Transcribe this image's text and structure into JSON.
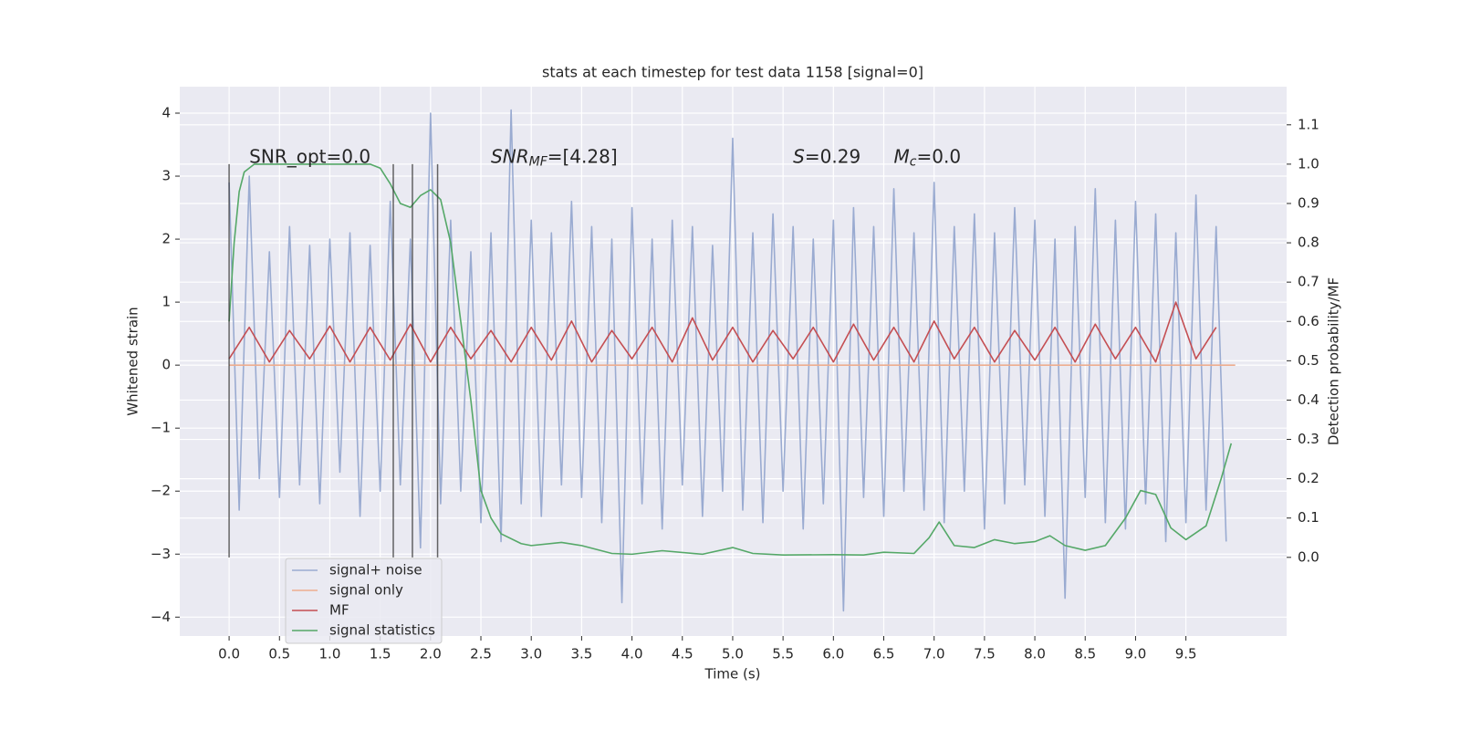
{
  "chart_data": {
    "type": "line",
    "title": "stats at each timestep for test data 1158 [signal=0]",
    "xlabel": "Time (s)",
    "ylabel": "Whitened strain",
    "y2label": "Detection probability/MF",
    "xlim": [
      -0.49,
      10.5
    ],
    "ylim": [
      -4.3,
      4.42
    ],
    "y2lim": [
      -0.2,
      1.197
    ],
    "xticks": [
      {
        "value": 0,
        "label": "0.0"
      },
      0.5,
      {
        "value": 1,
        "label": "1.0"
      },
      1.5,
      {
        "value": 2,
        "label": "2.0"
      },
      2.5,
      {
        "value": 3,
        "label": "3.0"
      },
      3.5,
      {
        "value": 4,
        "label": "4.0"
      },
      4.5,
      {
        "value": 5,
        "label": "5.0"
      },
      5.5,
      {
        "value": 6,
        "label": "6.0"
      },
      6.5,
      {
        "value": 7,
        "label": "7.0"
      },
      7.5,
      {
        "value": 8,
        "label": "8.0"
      },
      8.5,
      {
        "value": 9,
        "label": "9.0"
      },
      9.5
    ],
    "yticks": [
      {
        "value": -4,
        "label": "−4"
      },
      {
        "value": -3,
        "label": "−3"
      },
      {
        "value": -2,
        "label": "−2"
      },
      {
        "value": -1,
        "label": "−1"
      },
      0,
      1,
      2,
      3,
      4
    ],
    "y2ticks": [
      {
        "value": 0,
        "label": "0.0"
      },
      0.1,
      0.2,
      0.3,
      0.4,
      0.5,
      0.6,
      0.7,
      0.8,
      0.9,
      {
        "value": 1,
        "label": "1.0"
      },
      1.1
    ],
    "grid": true,
    "legend": "lower left",
    "series": [
      {
        "name": "signal+ noise",
        "color": "#9aabd1",
        "x": [
          0,
          0.1,
          0.2,
          0.3,
          0.4,
          0.5,
          0.6,
          0.7,
          0.8,
          0.9,
          1,
          1.1,
          1.2,
          1.3,
          1.4,
          1.5,
          1.6,
          1.7,
          1.8,
          1.9,
          2,
          2.1,
          2.2,
          2.3,
          2.4,
          2.5,
          2.6,
          2.7,
          2.8,
          2.9,
          3,
          3.1,
          3.2,
          3.3,
          3.4,
          3.5,
          3.6,
          3.7,
          3.8,
          3.9,
          4,
          4.1,
          4.2,
          4.3,
          4.4,
          4.5,
          4.6,
          4.7,
          4.8,
          4.9,
          5,
          5.1,
          5.2,
          5.3,
          5.4,
          5.5,
          5.6,
          5.7,
          5.8,
          5.9,
          6,
          6.1,
          6.2,
          6.3,
          6.4,
          6.5,
          6.6,
          6.7,
          6.8,
          6.9,
          7,
          7.1,
          7.2,
          7.3,
          7.4,
          7.5,
          7.6,
          7.7,
          7.8,
          7.9,
          8,
          8.1,
          8.2,
          8.3,
          8.4,
          8.5,
          8.6,
          8.7,
          8.8,
          8.9,
          9,
          9.1,
          9.2,
          9.3,
          9.4,
          9.5,
          9.6,
          9.7,
          9.8,
          9.9
        ],
        "values": [
          2.9,
          -2.3,
          3.0,
          -1.8,
          1.8,
          -2.1,
          2.2,
          -1.9,
          1.9,
          -2.2,
          2.0,
          -1.7,
          2.1,
          -2.4,
          1.9,
          -2.0,
          2.6,
          -1.9,
          2.0,
          -2.9,
          4.0,
          -2.2,
          2.3,
          -2.0,
          1.8,
          -2.5,
          2.1,
          -2.8,
          4.05,
          -2.2,
          2.3,
          -2.4,
          2.1,
          -1.9,
          2.6,
          -2.1,
          2.2,
          -2.5,
          2.0,
          -3.77,
          2.5,
          -2.2,
          2.0,
          -2.6,
          2.3,
          -1.9,
          2.2,
          -2.4,
          1.9,
          -2.0,
          3.6,
          -2.3,
          2.1,
          -2.5,
          2.4,
          -2.0,
          2.2,
          -2.6,
          2.0,
          -2.2,
          2.3,
          -3.9,
          2.5,
          -2.1,
          2.2,
          -2.4,
          2.8,
          -2.0,
          2.1,
          -2.3,
          2.9,
          -2.5,
          2.2,
          -2.0,
          2.4,
          -2.6,
          2.1,
          -2.2,
          2.5,
          -1.9,
          2.3,
          -2.4,
          2.0,
          -3.7,
          2.2,
          -2.1,
          2.8,
          -2.5,
          2.3,
          -2.6,
          2.6,
          -2.2,
          2.4,
          -2.8,
          2.1,
          -2.5,
          2.7,
          -2.3,
          2.2,
          -2.8
        ]
      },
      {
        "name": "signal only",
        "color": "#eeae8f",
        "x": [
          0,
          9.99
        ],
        "values": [
          0,
          0
        ]
      },
      {
        "name": "MF",
        "color": "#c44e52",
        "x": [
          0,
          0.2,
          0.4,
          0.6,
          0.8,
          1,
          1.2,
          1.4,
          1.6,
          1.8,
          2,
          2.2,
          2.4,
          2.6,
          2.8,
          3,
          3.2,
          3.4,
          3.6,
          3.8,
          4,
          4.2,
          4.4,
          4.6,
          4.8,
          5,
          5.2,
          5.4,
          5.6,
          5.8,
          6,
          6.2,
          6.4,
          6.6,
          6.8,
          7,
          7.2,
          7.4,
          7.6,
          7.8,
          8,
          8.2,
          8.4,
          8.6,
          8.8,
          9,
          9.2,
          9.4,
          9.6,
          9.8
        ],
        "values": [
          0.1,
          0.6,
          0.05,
          0.55,
          0.1,
          0.62,
          0.05,
          0.6,
          0.08,
          0.65,
          0.05,
          0.6,
          0.1,
          0.55,
          0.05,
          0.6,
          0.08,
          0.7,
          0.05,
          0.55,
          0.1,
          0.6,
          0.05,
          0.75,
          0.08,
          0.6,
          0.05,
          0.55,
          0.1,
          0.6,
          0.05,
          0.65,
          0.08,
          0.6,
          0.05,
          0.7,
          0.1,
          0.6,
          0.05,
          0.55,
          0.08,
          0.6,
          0.05,
          0.65,
          0.1,
          0.6,
          0.05,
          1.0,
          0.1,
          0.6
        ]
      },
      {
        "name": "signal statistics",
        "color": "#55a868",
        "axis": "y2",
        "x": [
          0,
          0.05,
          0.1,
          0.15,
          0.25,
          0.5,
          1.0,
          1.4,
          1.5,
          1.6,
          1.7,
          1.8,
          1.9,
          2.0,
          2.1,
          2.2,
          2.3,
          2.4,
          2.5,
          2.6,
          2.7,
          2.9,
          3.0,
          3.3,
          3.5,
          3.8,
          4.0,
          4.3,
          4.7,
          5.0,
          5.2,
          5.5,
          6.0,
          6.3,
          6.5,
          6.8,
          6.95,
          7.05,
          7.2,
          7.4,
          7.6,
          7.8,
          8.0,
          8.15,
          8.3,
          8.5,
          8.7,
          8.9,
          9.05,
          9.2,
          9.35,
          9.5,
          9.7,
          9.85,
          9.95
        ],
        "values": [
          0.6,
          0.8,
          0.93,
          0.98,
          1.0,
          1.0,
          1.0,
          1.0,
          0.99,
          0.95,
          0.9,
          0.89,
          0.92,
          0.935,
          0.91,
          0.8,
          0.6,
          0.4,
          0.17,
          0.1,
          0.06,
          0.035,
          0.03,
          0.038,
          0.03,
          0.01,
          0.008,
          0.017,
          0.008,
          0.025,
          0.01,
          0.006,
          0.007,
          0.006,
          0.013,
          0.01,
          0.05,
          0.09,
          0.03,
          0.025,
          0.045,
          0.035,
          0.04,
          0.055,
          0.03,
          0.018,
          0.03,
          0.1,
          0.17,
          0.16,
          0.075,
          0.045,
          0.08,
          0.2,
          0.29
        ]
      }
    ],
    "vlines": {
      "x": [
        0,
        1.63,
        1.82,
        2.07
      ],
      "ymin": 0,
      "ymax": 1,
      "axis": "y2",
      "color": "#333333"
    },
    "annotations": [
      {
        "x": 0.2,
        "y": 3.3,
        "text": "SNR_opt=0.0"
      },
      {
        "x": 2.6,
        "y": 3.3,
        "text": "SNR",
        "sub": "MF",
        "rest": "=[4.28]"
      },
      {
        "x": 5.6,
        "y": 3.3,
        "text": "S",
        "rest": "=0.29"
      },
      {
        "x": 6.6,
        "y": 3.3,
        "text": "M",
        "sub": "c",
        "rest": "=0.0"
      }
    ]
  }
}
